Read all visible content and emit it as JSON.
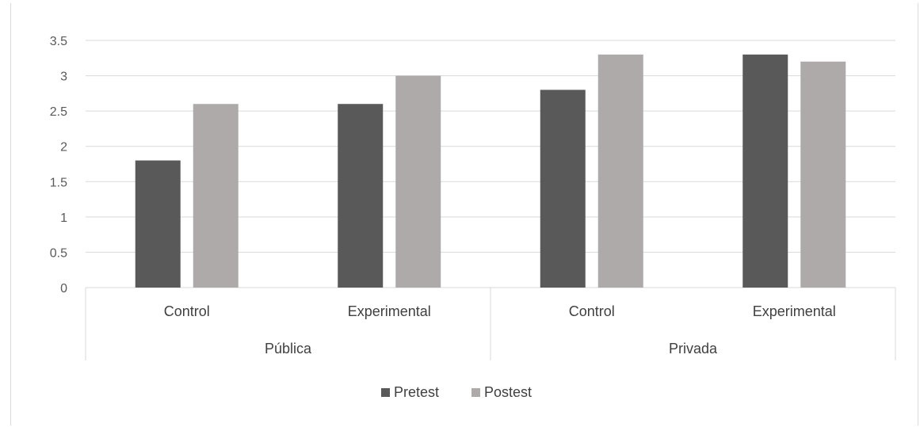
{
  "chart_data": {
    "type": "bar",
    "title": "",
    "xlabel": "",
    "ylabel": "",
    "ylim": [
      0,
      3.5
    ],
    "yticks": [
      "0",
      "0.5",
      "1",
      "1.5",
      "2",
      "2.5",
      "3",
      "3.5"
    ],
    "groups": [
      {
        "label": "Pública",
        "categories": [
          "Control",
          "Experimental"
        ]
      },
      {
        "label": "Privada",
        "categories": [
          "Control",
          "Experimental"
        ]
      }
    ],
    "categories": [
      "Control",
      "Experimental",
      "Control",
      "Experimental"
    ],
    "series": [
      {
        "name": "Pretest",
        "color": "#595959",
        "values": [
          1.8,
          2.6,
          2.8,
          3.3
        ]
      },
      {
        "name": "Postest",
        "color": "#aeaaaa",
        "values": [
          2.6,
          3.0,
          3.3,
          3.2
        ]
      }
    ],
    "grid": true,
    "legend_position": "bottom"
  }
}
